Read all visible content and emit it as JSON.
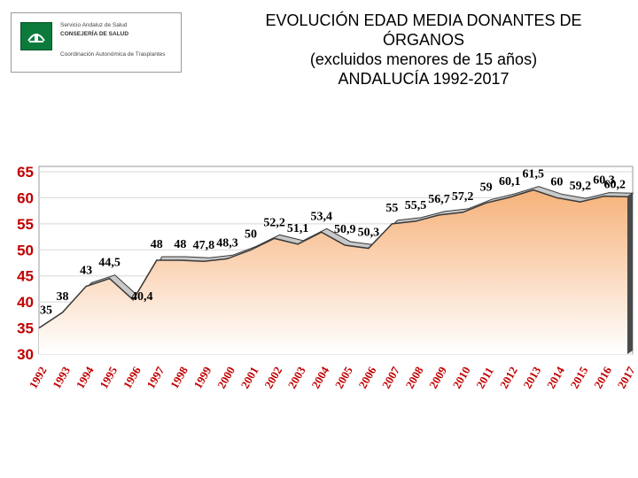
{
  "logo": {
    "line1": "Servicio Andaluz de Salud",
    "line2": "CONSEJERÍA DE SALUD",
    "line3": "Coordinación Autonómica de Trasplantes"
  },
  "title": {
    "line1": "EVOLUCIÓN EDAD MEDIA DONANTES DE ÓRGANOS",
    "line2": "(excluidos menores de 15 años)",
    "line3": "ANDALUCÍA 1992-2017"
  },
  "colors": {
    "fill_top": "#f6b27a",
    "fill_bottom": "#ffffff",
    "line": "#3a3a3a",
    "ribbon": "#c9c9c9",
    "axis_labels": "#c00000"
  },
  "chart_data": {
    "type": "area",
    "categories": [
      "1992",
      "1993",
      "1994",
      "1995",
      "1996",
      "1997",
      "1998",
      "1999",
      "2000",
      "2001",
      "2002",
      "2003",
      "2004",
      "2005",
      "2006",
      "2007",
      "2008",
      "2009",
      "2010",
      "2011",
      "2012",
      "2013",
      "2014",
      "2015",
      "2016",
      "2017"
    ],
    "values": [
      35,
      38,
      43,
      44.5,
      40.4,
      48,
      48,
      47.8,
      48.3,
      50,
      52.2,
      51.1,
      53.4,
      50.9,
      50.3,
      55,
      55.5,
      56.7,
      57.2,
      59,
      60.1,
      61.5,
      60,
      59.2,
      60.3,
      60.2
    ],
    "data_labels": [
      "35",
      "38",
      "43",
      "44,5",
      "40,4",
      "48",
      "48",
      "47,8",
      "48,3",
      "50",
      "52,2",
      "51,1",
      "53,4",
      "50,9",
      "50,3",
      "55",
      "55,5",
      "56,7",
      "57,2",
      "59",
      "60,1",
      "61,5",
      "60",
      "59,2",
      "60,3",
      "60,2"
    ],
    "yticks": [
      "30",
      "35",
      "40",
      "45",
      "50",
      "55",
      "60",
      "65"
    ],
    "ylim": [
      30,
      65
    ],
    "grid": true
  }
}
